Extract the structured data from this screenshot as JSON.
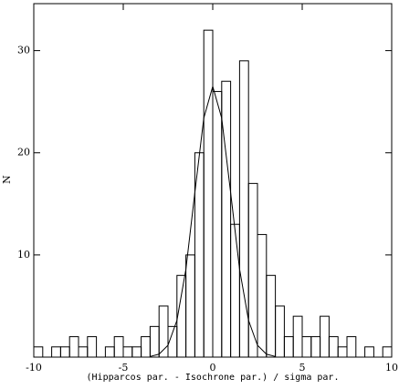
{
  "chart_data": {
    "type": "histogram",
    "x_label": "(Hipparcos par. - Isochrone par.) / sigma par.",
    "y_label": "N",
    "bins": [
      -10,
      -9.5,
      -9,
      -8.5,
      -8,
      -7.5,
      -7,
      -6.5,
      -6,
      -5.5,
      -5,
      -4.5,
      -4,
      -3.5,
      -3,
      -2.5,
      -2,
      -1.5,
      -1,
      -0.5,
      0,
      0.5,
      1,
      1.5,
      2,
      2.5,
      3,
      3.5,
      4,
      4.5,
      5,
      5.5,
      6,
      6.5,
      7,
      7.5,
      8,
      8.5,
      9,
      9.5,
      10
    ],
    "values": [
      1,
      0,
      1,
      1,
      2,
      1,
      2,
      0,
      1,
      2,
      1,
      1,
      2,
      3,
      5,
      3,
      8,
      10,
      20,
      32,
      26,
      27,
      13,
      29,
      17,
      12,
      8,
      5,
      2,
      4,
      2,
      2,
      4,
      2,
      1,
      2,
      0,
      1,
      0,
      1
    ],
    "curve": {
      "x": [
        -3.5,
        -3,
        -2.5,
        -2,
        -1.5,
        -1,
        -0.5,
        0,
        0.5,
        1,
        1.5,
        2,
        2.5,
        3,
        3.5
      ],
      "values": [
        0.06,
        0.29,
        1.16,
        3.6,
        8.6,
        16.1,
        23.4,
        26.5,
        23.4,
        16.1,
        8.6,
        3.6,
        1.16,
        0.29,
        0.06
      ]
    },
    "color": "#000000",
    "xlim": [
      -10,
      10
    ],
    "ylim": [
      0,
      34.6
    ],
    "xticks": [
      -10,
      -5,
      0,
      5,
      10
    ],
    "yticks": [
      10,
      20,
      30
    ]
  }
}
